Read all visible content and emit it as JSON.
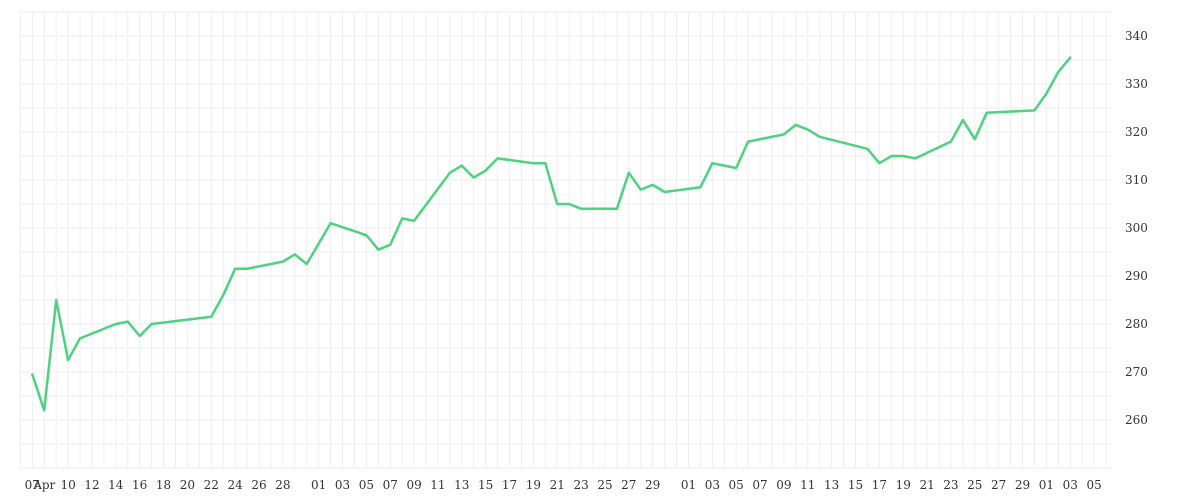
{
  "chart_data": {
    "type": "line",
    "title": "",
    "xlabel": "",
    "ylabel": "",
    "ylim": [
      250,
      345
    ],
    "grid": true,
    "legend": "none",
    "line_color": "#4dd27f",
    "grid_color": "#eeeeee",
    "yticks": [
      260,
      270,
      280,
      290,
      300,
      310,
      320,
      330,
      340
    ],
    "xticks": [
      {
        "x": 0,
        "label": "07"
      },
      {
        "x": 1,
        "label": "Apr"
      },
      {
        "x": 3,
        "label": "10"
      },
      {
        "x": 5,
        "label": "12"
      },
      {
        "x": 7,
        "label": "14"
      },
      {
        "x": 9,
        "label": "16"
      },
      {
        "x": 11,
        "label": "18"
      },
      {
        "x": 13,
        "label": "20"
      },
      {
        "x": 15,
        "label": "22"
      },
      {
        "x": 17,
        "label": "24"
      },
      {
        "x": 19,
        "label": "26"
      },
      {
        "x": 21,
        "label": "28"
      },
      {
        "x": 24,
        "label": "01"
      },
      {
        "x": 26,
        "label": "03"
      },
      {
        "x": 28,
        "label": "05"
      },
      {
        "x": 30,
        "label": "07"
      },
      {
        "x": 32,
        "label": "09"
      },
      {
        "x": 34,
        "label": "11"
      },
      {
        "x": 36,
        "label": "13"
      },
      {
        "x": 38,
        "label": "15"
      },
      {
        "x": 40,
        "label": "17"
      },
      {
        "x": 42,
        "label": "19"
      },
      {
        "x": 44,
        "label": "21"
      },
      {
        "x": 46,
        "label": "23"
      },
      {
        "x": 48,
        "label": "25"
      },
      {
        "x": 50,
        "label": "27"
      },
      {
        "x": 52,
        "label": "29"
      },
      {
        "x": 55,
        "label": "01"
      },
      {
        "x": 57,
        "label": "03"
      },
      {
        "x": 59,
        "label": "05"
      },
      {
        "x": 61,
        "label": "07"
      },
      {
        "x": 63,
        "label": "09"
      },
      {
        "x": 65,
        "label": "11"
      },
      {
        "x": 67,
        "label": "13"
      },
      {
        "x": 69,
        "label": "15"
      },
      {
        "x": 71,
        "label": "17"
      },
      {
        "x": 73,
        "label": "19"
      },
      {
        "x": 75,
        "label": "21"
      },
      {
        "x": 77,
        "label": "23"
      },
      {
        "x": 79,
        "label": "25"
      },
      {
        "x": 81,
        "label": "27"
      },
      {
        "x": 83,
        "label": "29"
      },
      {
        "x": 85,
        "label": "01"
      },
      {
        "x": 87,
        "label": "03"
      },
      {
        "x": 89,
        "label": "05"
      }
    ],
    "xlim": [
      -1.2,
      90.5
    ],
    "series": [
      {
        "x": [
          0,
          1,
          2,
          3,
          4,
          7,
          8,
          9,
          10,
          15,
          16,
          17,
          18,
          21,
          22,
          23,
          25,
          28,
          29,
          30,
          31,
          32,
          35,
          36,
          37,
          38,
          39,
          42,
          43,
          44,
          45,
          46,
          49,
          50,
          51,
          52,
          53,
          56,
          57,
          58,
          59,
          60,
          63,
          64,
          65,
          66,
          70,
          71,
          72,
          73,
          74,
          77,
          78,
          79,
          80,
          84,
          85,
          86,
          87
        ],
        "y": [
          269.5,
          262,
          285,
          272.5,
          277,
          280,
          280.5,
          277.5,
          280,
          281.5,
          286,
          291.5,
          291.5,
          293,
          294.5,
          292.5,
          301,
          298.5,
          295.5,
          296.5,
          302,
          301.5,
          311.5,
          313,
          310.5,
          312,
          314.5,
          313.5,
          313.5,
          305,
          305,
          304,
          304,
          311.5,
          308,
          309,
          307.5,
          308.5,
          313.5,
          313,
          312.5,
          318,
          319.5,
          321.5,
          320.5,
          319,
          316.5,
          313.5,
          315,
          315,
          314.5,
          318,
          322.5,
          318.5,
          324,
          324.5,
          328,
          332.5,
          335.5
        ]
      }
    ]
  }
}
